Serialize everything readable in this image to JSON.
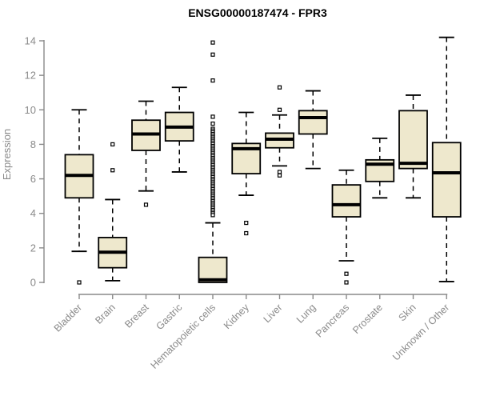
{
  "figure": {
    "title": "ENSG00000187474 - FPR3",
    "ylabel": "Expression"
  },
  "colors": {
    "background": "#ffffff",
    "box_fill": "#eee8cd",
    "box_stroke": "#000000",
    "median_color": "#000000",
    "whisker_color": "#000000",
    "outlier_stroke": "#000000",
    "outlier_fill": "#ffffff",
    "axis_color": "#8a8a8a",
    "tick_label_color": "#8a8a8a",
    "title_color": "#000000"
  },
  "chart_data": {
    "type": "boxplot",
    "title": "ENSG00000187474 - FPR3",
    "xlabel": "",
    "ylabel": "Expression",
    "ylim": [
      0,
      14
    ],
    "yticks": [
      0,
      2,
      4,
      6,
      8,
      10,
      12,
      14
    ],
    "grid": false,
    "legend": null,
    "x_tick_rotation": -45,
    "marker": "open-square",
    "categories": [
      "Bladder",
      "Brain",
      "Breast",
      "Gastric",
      "Hematopoietic cells",
      "Kidney",
      "Liver",
      "Lung",
      "Pancreas",
      "Prostate",
      "Skin",
      "Unknown / Other"
    ],
    "series": [
      {
        "name": "Bladder",
        "whisker_low": 1.8,
        "q1": 4.9,
        "median": 6.2,
        "q3": 7.4,
        "whisker_high": 10.0,
        "outliers": [
          0.0
        ]
      },
      {
        "name": "Brain",
        "whisker_low": 0.1,
        "q1": 0.85,
        "median": 1.75,
        "q3": 2.6,
        "whisker_high": 4.8,
        "outliers": [
          8.0,
          6.5
        ]
      },
      {
        "name": "Breast",
        "whisker_low": 5.3,
        "q1": 7.65,
        "median": 8.6,
        "q3": 9.4,
        "whisker_high": 10.5,
        "outliers": [
          4.5
        ]
      },
      {
        "name": "Gastric",
        "whisker_low": 6.4,
        "q1": 8.2,
        "median": 9.0,
        "q3": 9.85,
        "whisker_high": 11.3,
        "outliers": []
      },
      {
        "name": "Hematopoietic cells",
        "whisker_low": 0.0,
        "q1": 0.0,
        "median": 0.15,
        "q3": 1.45,
        "whisker_high": 3.45,
        "outliers": [
          13.9,
          13.2,
          11.7,
          9.6,
          9.2,
          8.9,
          8.8,
          8.7,
          8.6,
          8.5,
          8.4,
          8.3,
          8.2,
          8.1,
          8.0,
          7.9,
          7.8,
          7.7,
          7.6,
          7.5,
          7.4,
          7.3,
          7.2,
          7.1,
          7.0,
          6.9,
          6.8,
          6.7,
          6.6,
          6.5,
          6.4,
          6.3,
          6.2,
          6.1,
          6.0,
          5.9,
          5.8,
          5.7,
          5.6,
          5.5,
          5.4,
          5.3,
          5.2,
          5.1,
          5.0,
          4.9,
          4.8,
          4.7,
          4.6,
          4.5,
          4.4,
          4.3,
          4.2,
          4.1,
          4.0,
          3.9
        ]
      },
      {
        "name": "Kidney",
        "whisker_low": 5.05,
        "q1": 6.3,
        "median": 7.75,
        "q3": 8.05,
        "whisker_high": 9.85,
        "outliers": [
          3.45,
          2.85
        ]
      },
      {
        "name": "Liver",
        "whisker_low": 6.75,
        "q1": 7.8,
        "median": 8.3,
        "q3": 8.65,
        "whisker_high": 9.7,
        "outliers": [
          11.3,
          10.0,
          6.4,
          6.2
        ]
      },
      {
        "name": "Lung",
        "whisker_low": 6.6,
        "q1": 8.6,
        "median": 9.55,
        "q3": 9.95,
        "whisker_high": 11.1,
        "outliers": []
      },
      {
        "name": "Pancreas",
        "whisker_low": 1.25,
        "q1": 3.8,
        "median": 4.5,
        "q3": 5.65,
        "whisker_high": 6.5,
        "outliers": [
          0.5,
          0.0
        ]
      },
      {
        "name": "Prostate",
        "whisker_low": 4.9,
        "q1": 5.85,
        "median": 6.85,
        "q3": 7.1,
        "whisker_high": 8.35,
        "outliers": []
      },
      {
        "name": "Skin",
        "whisker_low": 4.9,
        "q1": 6.6,
        "median": 6.9,
        "q3": 9.95,
        "whisker_high": 10.85,
        "outliers": []
      },
      {
        "name": "Unknown / Other",
        "whisker_low": 0.05,
        "q1": 3.8,
        "median": 6.35,
        "q3": 8.1,
        "whisker_high": 14.2,
        "outliers": []
      }
    ]
  }
}
